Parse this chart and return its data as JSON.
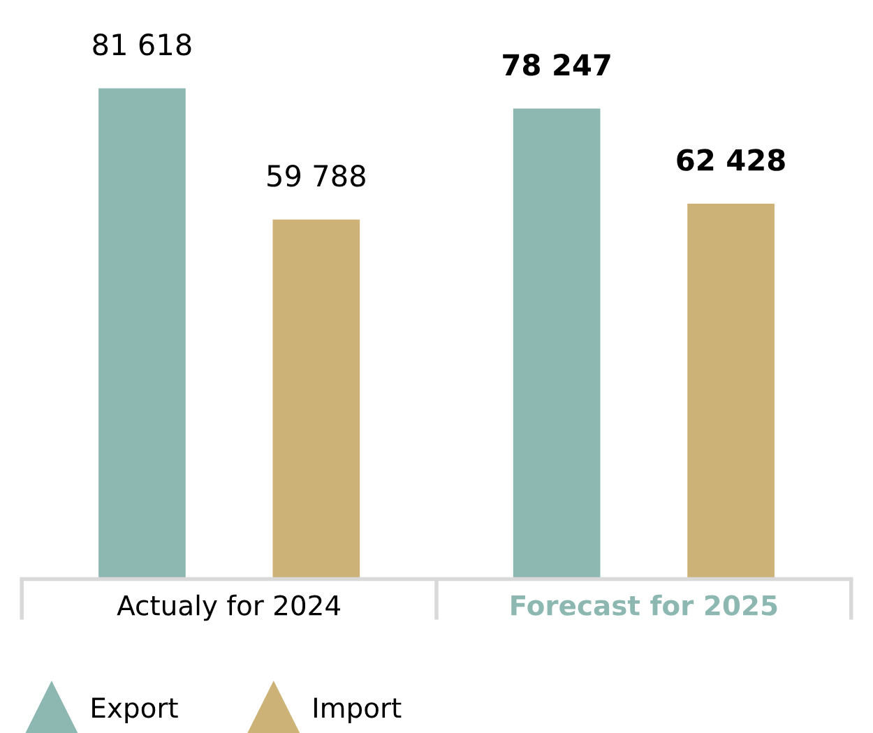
{
  "chart_data": {
    "type": "bar",
    "categories": [
      "Actualy for 2024",
      "Forecast for 2025"
    ],
    "series": [
      {
        "name": "Export",
        "color": "#8db8b1",
        "values": [
          81618,
          78247
        ],
        "value_labels": [
          "81 618",
          "78 247"
        ]
      },
      {
        "name": "Import",
        "color": "#cdb277",
        "values": [
          59788,
          62428
        ],
        "value_labels": [
          "59 788",
          "62 428"
        ]
      }
    ],
    "legend": "bottom left",
    "grid": false
  }
}
